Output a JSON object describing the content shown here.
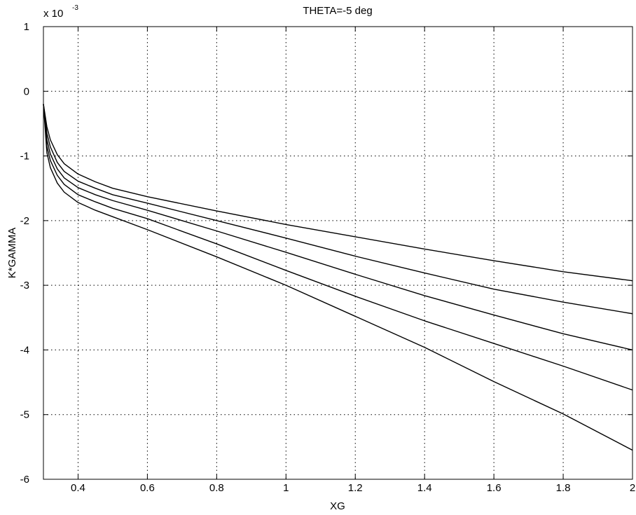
{
  "chart_data": {
    "type": "line",
    "title": "THETA=-5 deg",
    "xlabel": "XG",
    "ylabel": "K*GAMMA",
    "y_multiplier_base": "x 10",
    "y_multiplier_exp": "-3",
    "xlim": [
      0.3,
      2.0
    ],
    "ylim": [
      -6,
      1
    ],
    "x_ticks": [
      0.4,
      0.6,
      0.8,
      1.0,
      1.2,
      1.4,
      1.6,
      1.8,
      2.0
    ],
    "x_tick_labels": [
      "0.4",
      "0.6",
      "0.8",
      "1",
      "1.2",
      "1.4",
      "1.6",
      "1.8",
      "2"
    ],
    "y_ticks": [
      -6,
      -5,
      -4,
      -3,
      -2,
      -1,
      0,
      1
    ],
    "y_tick_labels": [
      "-6",
      "-5",
      "-4",
      "-3",
      "-2",
      "-1",
      "0",
      "1"
    ],
    "grid": true,
    "line_color": "#000000",
    "grid_color": "#000000",
    "series": [
      {
        "x": [
          0.3,
          0.31,
          0.32,
          0.34,
          0.36,
          0.4,
          0.45,
          0.5,
          0.6,
          0.8,
          1.0,
          1.2,
          1.4,
          1.6,
          1.8,
          2.0
        ],
        "values": [
          -0.2,
          -0.55,
          -0.75,
          -0.98,
          -1.12,
          -1.28,
          -1.4,
          -1.5,
          -1.63,
          -1.85,
          -2.06,
          -2.25,
          -2.44,
          -2.62,
          -2.79,
          -2.93
        ]
      },
      {
        "x": [
          0.3,
          0.31,
          0.32,
          0.34,
          0.36,
          0.4,
          0.45,
          0.5,
          0.6,
          0.8,
          1.0,
          1.2,
          1.4,
          1.6,
          1.8,
          2.0
        ],
        "values": [
          -0.2,
          -0.65,
          -0.86,
          -1.1,
          -1.24,
          -1.39,
          -1.5,
          -1.6,
          -1.73,
          -2.0,
          -2.27,
          -2.55,
          -2.81,
          -3.06,
          -3.26,
          -3.44
        ]
      },
      {
        "x": [
          0.3,
          0.31,
          0.32,
          0.34,
          0.36,
          0.4,
          0.45,
          0.5,
          0.6,
          0.8,
          1.0,
          1.2,
          1.4,
          1.6,
          1.8,
          2.0
        ],
        "values": [
          -0.2,
          -0.75,
          -0.97,
          -1.2,
          -1.34,
          -1.49,
          -1.6,
          -1.69,
          -1.84,
          -2.16,
          -2.49,
          -2.83,
          -3.16,
          -3.46,
          -3.75,
          -4.0
        ]
      },
      {
        "x": [
          0.3,
          0.31,
          0.32,
          0.34,
          0.36,
          0.4,
          0.45,
          0.5,
          0.6,
          0.8,
          1.0,
          1.2,
          1.4,
          1.6,
          1.8,
          2.0
        ],
        "values": [
          -0.2,
          -0.85,
          -1.07,
          -1.3,
          -1.44,
          -1.6,
          -1.71,
          -1.81,
          -1.97,
          -2.36,
          -2.77,
          -3.17,
          -3.55,
          -3.9,
          -4.25,
          -4.62
        ]
      },
      {
        "x": [
          0.3,
          0.31,
          0.32,
          0.34,
          0.36,
          0.4,
          0.45,
          0.5,
          0.6,
          0.8,
          1.0,
          1.2,
          1.4,
          1.6,
          1.8,
          2.0
        ],
        "values": [
          -0.2,
          -0.95,
          -1.18,
          -1.42,
          -1.56,
          -1.72,
          -1.84,
          -1.94,
          -2.14,
          -2.56,
          -3.0,
          -3.48,
          -3.96,
          -4.49,
          -4.99,
          -5.55
        ]
      }
    ]
  }
}
